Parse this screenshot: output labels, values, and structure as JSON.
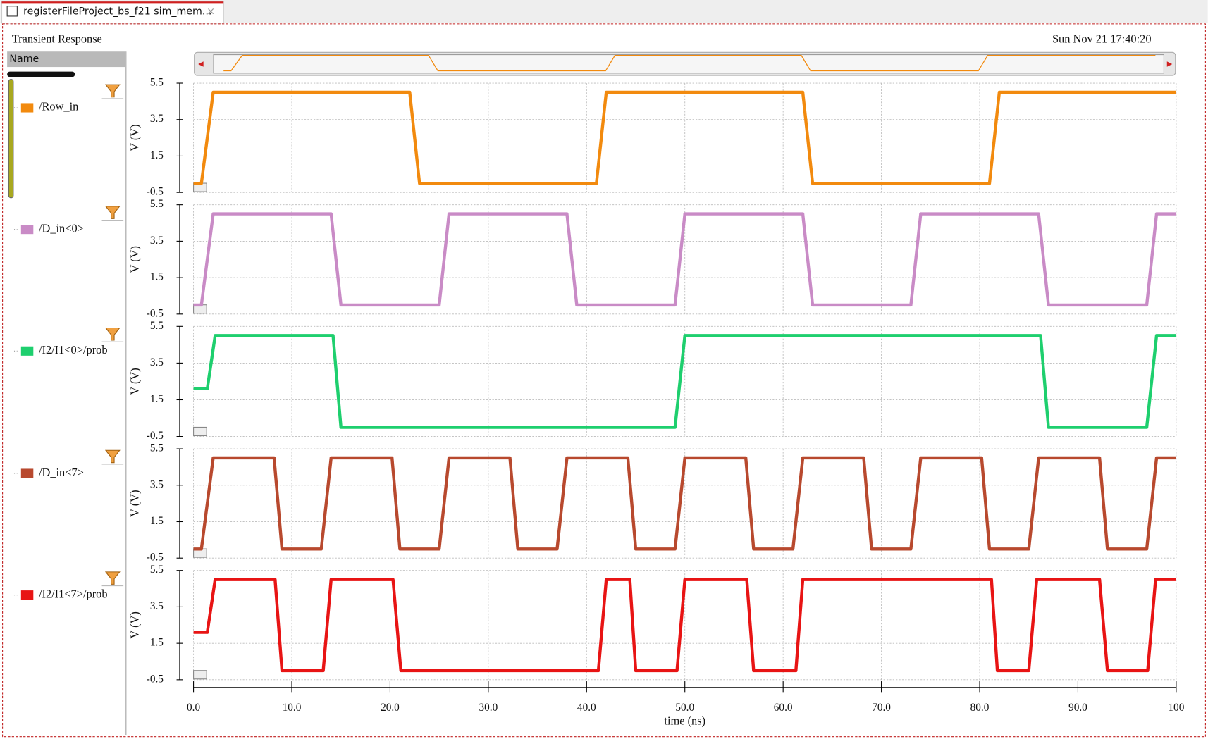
{
  "window": {
    "tab_title": "registerFileProject_bs_f21 sim_mem...",
    "title": "Transient Response",
    "timestamp": "Sun Nov 21 17:40:20",
    "name_header": "Name"
  },
  "chart_data": [
    {
      "type": "line",
      "ylabel": "V (V)",
      "ylim": [
        -0.5,
        5.5
      ],
      "yticks": [
        -0.5,
        1.5,
        3.5,
        5.5
      ],
      "xlim": [
        0,
        100
      ],
      "grid": true,
      "series": [
        {
          "name": "/Row_in",
          "color": "#f28a0e",
          "x": [
            0,
            0.8,
            2,
            22,
            23,
            41,
            42,
            62,
            63,
            81,
            82,
            100
          ],
          "values": [
            0,
            0,
            5,
            5,
            0,
            0,
            5,
            5,
            0,
            0,
            5,
            5
          ]
        }
      ]
    },
    {
      "type": "line",
      "ylabel": "V (V)",
      "ylim": [
        -0.5,
        5.5
      ],
      "yticks": [
        -0.5,
        1.5,
        3.5,
        5.5
      ],
      "xlim": [
        0,
        100
      ],
      "grid": true,
      "series": [
        {
          "name": "/D_in<0>",
          "color": "#c98bc6",
          "x": [
            0,
            0.8,
            2,
            14,
            15,
            25,
            26,
            38,
            39,
            49,
            50,
            62,
            63,
            73,
            74,
            86,
            87,
            97,
            98,
            100
          ],
          "values": [
            0,
            0,
            5,
            5,
            0,
            0,
            5,
            5,
            0,
            0,
            5,
            5,
            0,
            0,
            5,
            5,
            0,
            0,
            5,
            5
          ]
        }
      ]
    },
    {
      "type": "line",
      "ylabel": "V (V)",
      "ylim": [
        -0.5,
        5.5
      ],
      "yticks": [
        -0.5,
        1.5,
        3.5,
        5.5
      ],
      "xlim": [
        0,
        100
      ],
      "grid": true,
      "series": [
        {
          "name": "/I2/I1<0>/prob",
          "color": "#1ecf6e",
          "x": [
            0,
            1.4,
            2.2,
            14.2,
            15,
            49,
            50,
            86.2,
            87,
            97,
            98,
            100
          ],
          "values": [
            2.1,
            2.1,
            5,
            5,
            0,
            0,
            5,
            5,
            0,
            0,
            5,
            5
          ]
        }
      ]
    },
    {
      "type": "line",
      "ylabel": "V (V)",
      "ylim": [
        -0.5,
        5.5
      ],
      "yticks": [
        -0.5,
        1.5,
        3.5,
        5.5
      ],
      "xlim": [
        0,
        100
      ],
      "grid": true,
      "series": [
        {
          "name": "/D_in<7>",
          "color": "#b8492e",
          "x": [
            0,
            0.8,
            2,
            8.2,
            9,
            13,
            14,
            20.2,
            21,
            25,
            26,
            32.2,
            33,
            37,
            38,
            44.2,
            45,
            49,
            50,
            56.2,
            57,
            61,
            62,
            68.2,
            69,
            73,
            74,
            80.2,
            81,
            85,
            86,
            92.2,
            93,
            97,
            98,
            100
          ],
          "values": [
            0,
            0,
            5,
            5,
            0,
            0,
            5,
            5,
            0,
            0,
            5,
            5,
            0,
            0,
            5,
            5,
            0,
            0,
            5,
            5,
            0,
            0,
            5,
            5,
            0,
            0,
            5,
            5,
            0,
            0,
            5,
            5,
            0,
            0,
            5,
            5
          ]
        }
      ]
    },
    {
      "type": "line",
      "ylabel": "V (V)",
      "ylim": [
        -0.5,
        5.5
      ],
      "yticks": [
        -0.5,
        1.5,
        3.5,
        5.5
      ],
      "xlim": [
        0,
        100
      ],
      "grid": true,
      "xlabel": "time (ns)",
      "xticks": [
        {
          "value": 0,
          "label": "0.0"
        },
        {
          "value": 10,
          "label": "10.0"
        },
        {
          "value": 20,
          "label": "20.0"
        },
        {
          "value": 30,
          "label": "30.0"
        },
        {
          "value": 40,
          "label": "40.0"
        },
        {
          "value": 50,
          "label": "50.0"
        },
        {
          "value": 60,
          "label": "60.0"
        },
        {
          "value": 70,
          "label": "70.0"
        },
        {
          "value": 80,
          "label": "80.0"
        },
        {
          "value": 90,
          "label": "90.0"
        },
        100
      ],
      "series": [
        {
          "name": "/I2/I1<7>/prob",
          "color": "#e81414",
          "x": [
            0,
            1.4,
            2.2,
            8.3,
            9,
            13.2,
            14,
            20.3,
            21.1,
            41.2,
            42,
            44.4,
            45,
            49.2,
            50,
            56.3,
            57,
            61.3,
            62,
            81.2,
            81.8,
            85,
            85.8,
            92.2,
            93,
            97.1,
            97.9,
            100
          ],
          "values": [
            2.1,
            2.1,
            5,
            5,
            0,
            0,
            5,
            5,
            0,
            0,
            5,
            5,
            0,
            0,
            5,
            5,
            0,
            0,
            5,
            5,
            0,
            0,
            5,
            5,
            0,
            0,
            5,
            5
          ]
        }
      ]
    }
  ]
}
